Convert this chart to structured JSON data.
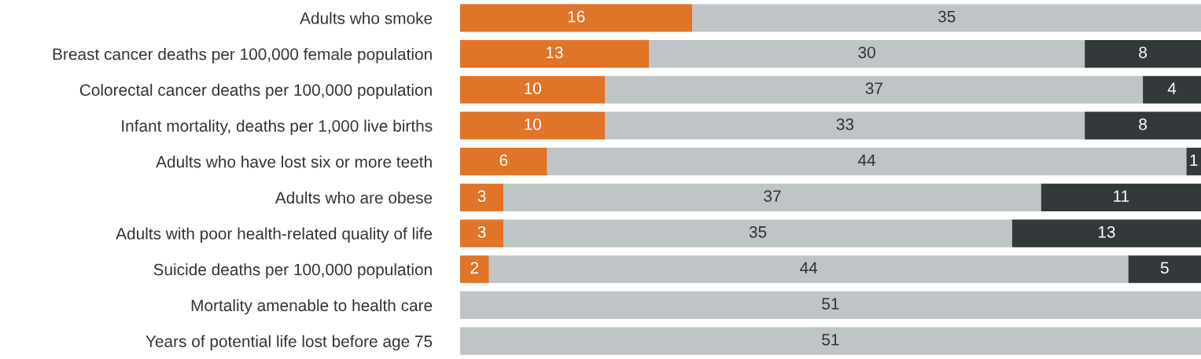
{
  "chart_data": {
    "type": "bar",
    "orientation": "horizontal",
    "stacked": true,
    "data_labels": true,
    "grid": false,
    "legend": false,
    "tick_labels": "y",
    "xlim": [
      0,
      51
    ],
    "categories": [
      "Adults who smoke",
      "Breast cancer deaths per 100,000 female population",
      "Colorectal cancer deaths per 100,000 population",
      "Infant mortality, deaths per 1,000 live births",
      "Adults who have lost six or more teeth",
      "Adults who are obese",
      "Adults with poor health-related quality of life",
      "Suicide deaths per 100,000 population",
      "Mortality amenable to health care",
      "Years of potential life lost before age 75"
    ],
    "series": [
      {
        "color": "#e07428",
        "values": [
          16,
          13,
          10,
          10,
          6,
          3,
          3,
          2,
          null,
          null
        ]
      },
      {
        "color": "#bfc4c7",
        "values": [
          35,
          30,
          37,
          33,
          44,
          37,
          35,
          44,
          51,
          51
        ]
      },
      {
        "color": "#33383b",
        "values": [
          null,
          8,
          4,
          8,
          1,
          11,
          13,
          5,
          null,
          null
        ]
      }
    ]
  }
}
